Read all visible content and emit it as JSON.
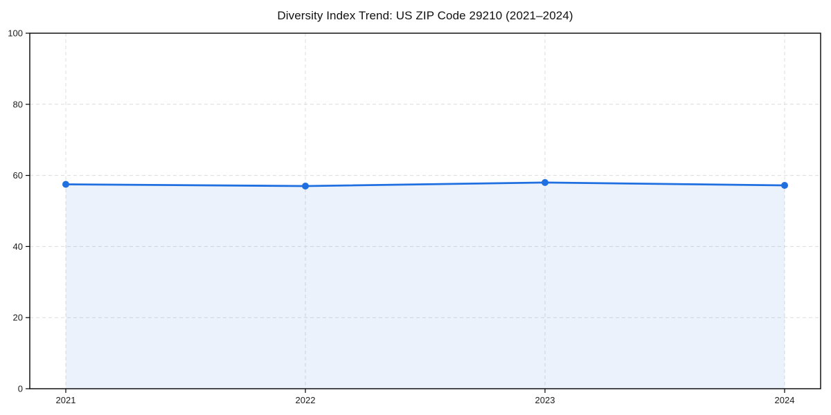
{
  "title": "Diversity Index Trend: US ZIP Code 29210 (2021–2024)",
  "chart_data": {
    "type": "area",
    "title": "Diversity Index Trend: US ZIP Code 29210 (2021–2024)",
    "x": [
      2021,
      2022,
      2023,
      2024
    ],
    "xticklabels": [
      "2021",
      "2022",
      "2023",
      "2024"
    ],
    "series": [
      {
        "name": "Diversity Index",
        "values": [
          57.5,
          57.0,
          58.0,
          57.2
        ]
      }
    ],
    "xlabel": "",
    "ylabel": "",
    "ylim": [
      0,
      100
    ],
    "yticks": [
      0,
      20,
      40,
      60,
      80,
      100
    ],
    "grid": true,
    "grid_style": "dashed",
    "legend": false,
    "colors": {
      "line": "#1f6fe0",
      "marker": "#1f6fe0",
      "fill": "rgba(31,111,224,0.09)",
      "grid": "#dcdcdc",
      "spine": "#000000",
      "tick_text": "#1c1c1c",
      "background": "#ffffff"
    }
  }
}
